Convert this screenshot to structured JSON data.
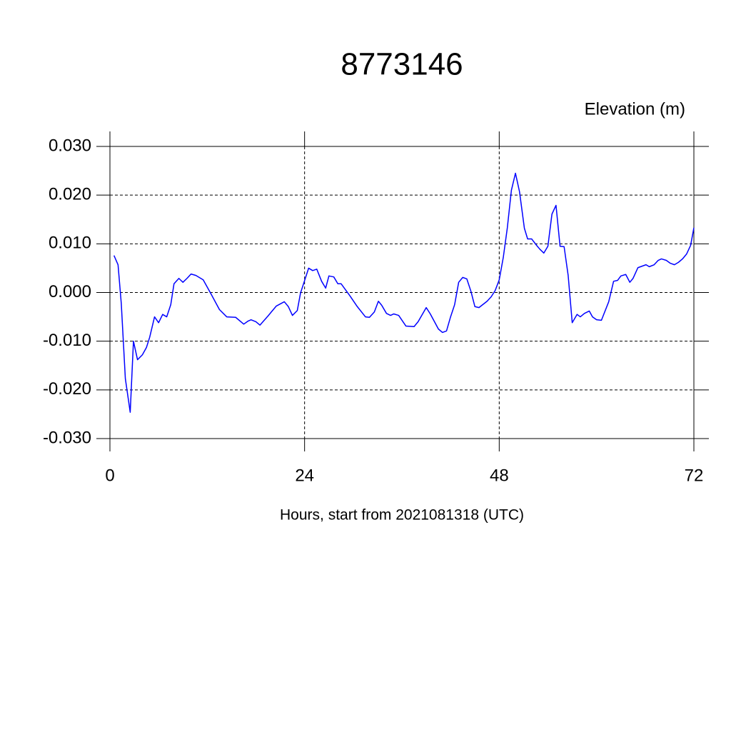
{
  "chart_data": {
    "type": "line",
    "title": "8773146",
    "subtitle": "Elevation (m)",
    "x_label": "Hours, start from 2021081318 (UTC)",
    "xlim": [
      0,
      72
    ],
    "ylim": [
      -0.03,
      0.03
    ],
    "xticks": [
      0,
      24,
      48,
      72
    ],
    "yticks": [
      {
        "value": -0.03,
        "label": "-0.030"
      },
      {
        "value": -0.02,
        "label": "-0.020"
      },
      {
        "value": -0.01,
        "label": "-0.010"
      },
      {
        "value": 0,
        "label": "0.000"
      },
      {
        "value": 0.01,
        "label": "0.010"
      },
      {
        "value": 0.02,
        "label": "0.020"
      },
      {
        "value": 0.03,
        "label": "0.030"
      }
    ],
    "grid": true,
    "series": [
      {
        "color": "#0000ff",
        "x": [
          0.5,
          1.0,
          1.4,
          1.9,
          2.5,
          2.9,
          3.4,
          4.0,
          4.5,
          4.9,
          5.5,
          6.0,
          6.5,
          7.0,
          7.5,
          7.9,
          8.5,
          9.0,
          9.5,
          10.0,
          10.6,
          11.5,
          12.5,
          13.5,
          14.4,
          15.5,
          16.5,
          17.0,
          17.4,
          18.0,
          18.5,
          19.5,
          20.5,
          21.5,
          22.0,
          22.5,
          23.1,
          23.5,
          24.5,
          25.0,
          25.5,
          26.1,
          26.6,
          27.0,
          27.6,
          28.1,
          28.5,
          29.6,
          30.5,
          31.5,
          32.0,
          32.6,
          33.1,
          33.5,
          34.1,
          34.6,
          35.0,
          35.6,
          36.5,
          37.5,
          38.0,
          39.0,
          39.5,
          40.5,
          41.0,
          41.5,
          42.0,
          42.5,
          43.0,
          43.5,
          44.0,
          44.5,
          45.0,
          45.5,
          46.5,
          47.0,
          47.5,
          48.0,
          48.5,
          49.0,
          49.5,
          50.0,
          50.5,
          51.1,
          51.5,
          52.0,
          52.6,
          53.0,
          53.5,
          54.0,
          54.5,
          55.0,
          55.5,
          56.0,
          56.5,
          57.0,
          57.6,
          58.0,
          58.5,
          59.1,
          59.5,
          60.0,
          60.6,
          61.5,
          62.1,
          62.6,
          63.0,
          63.6,
          64.1,
          64.5,
          65.1,
          66.1,
          66.5,
          67.1,
          67.6,
          68.0,
          68.6,
          69.1,
          69.6,
          70.1,
          70.6,
          71.1,
          71.6,
          72.0
        ],
        "values": [
          0.0076,
          0.0057,
          -0.0023,
          -0.0177,
          -0.0246,
          -0.01,
          -0.0138,
          -0.0128,
          -0.0113,
          -0.0092,
          -0.005,
          -0.0062,
          -0.0045,
          -0.005,
          -0.0025,
          0.0018,
          0.0029,
          0.0021,
          0.0029,
          0.0038,
          0.0035,
          0.0026,
          -0.0004,
          -0.0035,
          -0.005,
          -0.0051,
          -0.0065,
          -0.0059,
          -0.0056,
          -0.006,
          -0.0067,
          -0.0048,
          -0.0028,
          -0.0019,
          -0.0029,
          -0.0047,
          -0.0037,
          -0.0001,
          0.005,
          0.0045,
          0.0048,
          0.0023,
          0.0009,
          0.0034,
          0.0032,
          0.0018,
          0.0018,
          -0.0007,
          -0.0029,
          -0.005,
          -0.0051,
          -0.004,
          -0.0018,
          -0.0026,
          -0.0043,
          -0.0047,
          -0.0044,
          -0.0047,
          -0.0069,
          -0.007,
          -0.006,
          -0.0031,
          -0.0044,
          -0.0075,
          -0.0082,
          -0.0079,
          -0.005,
          -0.0025,
          0.0021,
          0.0031,
          0.0028,
          0.0003,
          -0.0029,
          -0.0031,
          -0.0018,
          -0.0009,
          0.0004,
          0.0026,
          0.0072,
          0.0133,
          0.021,
          0.0245,
          0.0207,
          0.0132,
          0.011,
          0.011,
          0.0097,
          0.0089,
          0.0081,
          0.0095,
          0.0161,
          0.0179,
          0.0095,
          0.0094,
          0.0035,
          -0.0062,
          -0.0045,
          -0.005,
          -0.0043,
          -0.0038,
          -0.005,
          -0.0056,
          -0.0057,
          -0.0019,
          0.0023,
          0.0025,
          0.0034,
          0.0037,
          0.0021,
          0.0029,
          0.0051,
          0.0057,
          0.0053,
          0.0057,
          0.0066,
          0.0069,
          0.0066,
          0.006,
          0.0057,
          0.0062,
          0.0069,
          0.0079,
          0.0097,
          0.0133
        ]
      }
    ]
  }
}
